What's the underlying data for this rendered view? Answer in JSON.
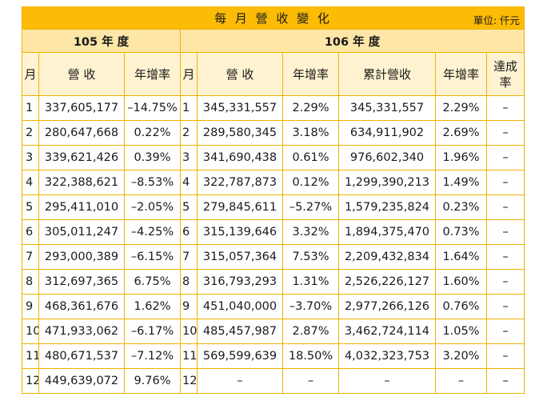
{
  "title": "每 月 營 收 變 化",
  "unit": "單位: 仟元",
  "year105": "105 年 度",
  "year106": "106 年 度",
  "headers": {
    "month": "月",
    "revenue": "營 收",
    "growth": "年增率",
    "month2": "月",
    "revenue2": "營 收",
    "growth2": "年增率",
    "cumulative": "累計營收",
    "cum_growth": "年增率",
    "achievement_line1": "達成",
    "achievement_line2": "率"
  },
  "rows": [
    {
      "m1": "1",
      "rev105": "337,605,177",
      "g105": "–14.75%",
      "m2": "1",
      "rev106": "345,331,557",
      "g106": "2.29%",
      "cum": "345,331,557",
      "cg": "2.29%",
      "ach": "–"
    },
    {
      "m1": "2",
      "rev105": "280,647,668",
      "g105": "0.22%",
      "m2": "2",
      "rev106": "289,580,345",
      "g106": "3.18%",
      "cum": "634,911,902",
      "cg": "2.69%",
      "ach": "–"
    },
    {
      "m1": "3",
      "rev105": "339,621,426",
      "g105": "0.39%",
      "m2": "3",
      "rev106": "341,690,438",
      "g106": "0.61%",
      "cum": "976,602,340",
      "cg": "1.96%",
      "ach": "–"
    },
    {
      "m1": "4",
      "rev105": "322,388,621",
      "g105": "–8.53%",
      "m2": "4",
      "rev106": "322,787,873",
      "g106": "0.12%",
      "cum": "1,299,390,213",
      "cg": "1.49%",
      "ach": "–"
    },
    {
      "m1": "5",
      "rev105": "295,411,010",
      "g105": "–2.05%",
      "m2": "5",
      "rev106": "279,845,611",
      "g106": "–5.27%",
      "cum": "1,579,235,824",
      "cg": "0.23%",
      "ach": "–"
    },
    {
      "m1": "6",
      "rev105": "305,011,247",
      "g105": "–4.25%",
      "m2": "6",
      "rev106": "315,139,646",
      "g106": "3.32%",
      "cum": "1,894,375,470",
      "cg": "0.73%",
      "ach": "–"
    },
    {
      "m1": "7",
      "rev105": "293,000,389",
      "g105": "–6.15%",
      "m2": "7",
      "rev106": "315,057,364",
      "g106": "7.53%",
      "cum": "2,209,432,834",
      "cg": "1.64%",
      "ach": "–"
    },
    {
      "m1": "8",
      "rev105": "312,697,365",
      "g105": "6.75%",
      "m2": "8",
      "rev106": "316,793,293",
      "g106": "1.31%",
      "cum": "2,526,226,127",
      "cg": "1.60%",
      "ach": "–"
    },
    {
      "m1": "9",
      "rev105": "468,361,676",
      "g105": "1.62%",
      "m2": "9",
      "rev106": "451,040,000",
      "g106": "–3.70%",
      "cum": "2,977,266,126",
      "cg": "0.76%",
      "ach": "–"
    },
    {
      "m1": "10",
      "rev105": "471,933,062",
      "g105": "–6.17%",
      "m2": "10",
      "rev106": "485,457,987",
      "g106": "2.87%",
      "cum": "3,462,724,114",
      "cg": "1.05%",
      "ach": "–"
    },
    {
      "m1": "11",
      "rev105": "480,671,537",
      "g105": "–7.12%",
      "m2": "11",
      "rev106": "569,599,639",
      "g106": "18.50%",
      "cum": "4,032,323,753",
      "cg": "3.20%",
      "ach": "–"
    },
    {
      "m1": "12",
      "rev105": "449,639,072",
      "g105": "9.76%",
      "m2": "12",
      "rev106": "–",
      "g106": "–",
      "cum": "–",
      "cg": "–",
      "ach": "–"
    }
  ]
}
